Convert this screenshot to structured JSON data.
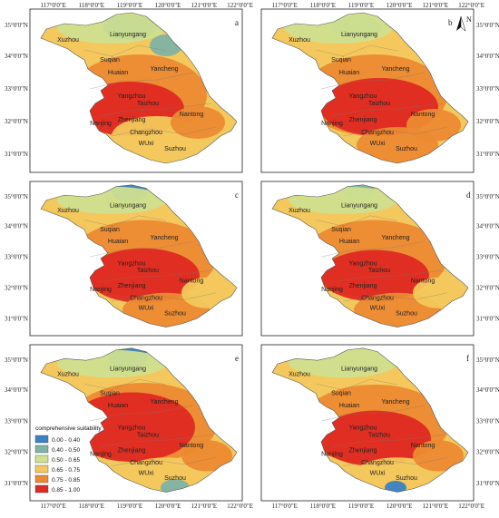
{
  "lon_labels": [
    "117°0'0\"E",
    "118°0'0\"E",
    "119°0'0\"E",
    "120°0'0\"E",
    "121°0'0\"E",
    "122°0'0\"E"
  ],
  "lat_labels": [
    "35°0'0\"N",
    "34°0'0\"N",
    "33°0'0\"N",
    "32°0'0\"N",
    "31°0'0\"N"
  ],
  "cities": [
    "Xuzhou",
    "Lianyungang",
    "Suqian",
    "Huaian",
    "Yancheng",
    "Yangzhou",
    "Taizhou",
    "Nantong",
    "Nanjing",
    "Zhenjiang",
    "Changzhou",
    "WUxi",
    "Suzhou"
  ],
  "north_label": "N",
  "legend": {
    "title": "comprehensive suitability",
    "classes": [
      {
        "label": "0.00 - 0.40",
        "color": "#3a82c4"
      },
      {
        "label": "0.40 - 0.50",
        "color": "#7fb3a3"
      },
      {
        "label": "0.50 - 0.65",
        "color": "#cfe08f"
      },
      {
        "label": "0.65 - 0.75",
        "color": "#f3c85c"
      },
      {
        "label": "0.75 - 0.85",
        "color": "#ec8a32"
      },
      {
        "label": "0.85 - 1.00",
        "color": "#df2a22"
      }
    ]
  },
  "panels": [
    {
      "letter": "a",
      "variant": 0
    },
    {
      "letter": "b",
      "variant": 1
    },
    {
      "letter": "c",
      "variant": 2
    },
    {
      "letter": "d",
      "variant": 3
    },
    {
      "letter": "e",
      "variant": 4
    },
    {
      "letter": "f",
      "variant": 5
    }
  ]
}
